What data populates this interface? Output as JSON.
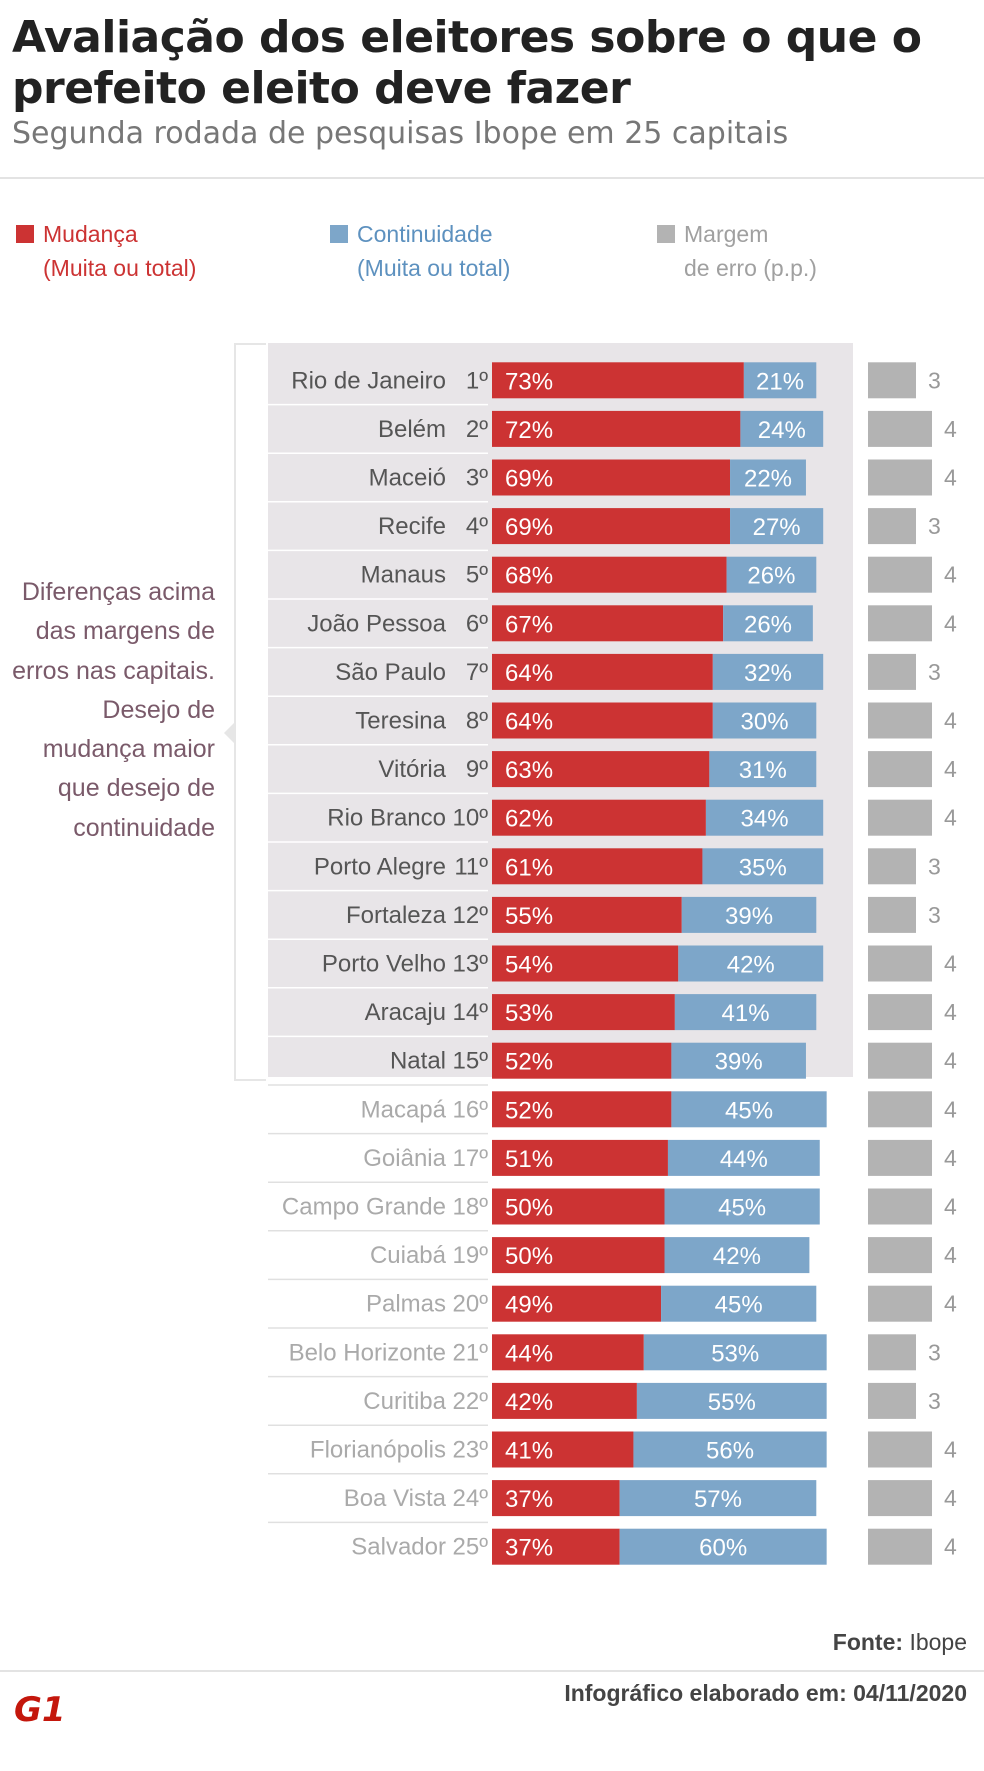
{
  "title": "Avaliação dos eleitores sobre o que o prefeito eleito deve fazer",
  "subtitle": "Segunda rodada de pesquisas Ibope em 25 capitais",
  "legend": {
    "mudanca": "Mudança",
    "mudanca_sub": "(Muita ou total)",
    "continuidade": "Continuidade",
    "continuidade_sub": "(Muita ou total)",
    "margem": "Margem",
    "margem_sub": "de erro (p.p.)"
  },
  "annotation": "Diferenças acima das margens de erros nas capitais. Desejo de mudança maior que desejo de continuidade",
  "colors": {
    "mudanca": "#cc3333",
    "continuidade": "#7da6c9",
    "margem": "#b3b3b3",
    "highlight_bg": "#e8e5e8",
    "label_dark": "#555555",
    "label_light": "#aaaaaa"
  },
  "chart_data": {
    "type": "bar",
    "stacked": true,
    "orientation": "horizontal",
    "highlighted_count": 15,
    "categories": [
      "Rio de Janeiro",
      "Belém",
      "Maceió",
      "Recife",
      "Manaus",
      "João Pessoa",
      "São Paulo",
      "Teresina",
      "Vitória",
      "Rio Branco",
      "Porto Alegre",
      "Fortaleza",
      "Porto Velho",
      "Aracaju",
      "Natal",
      "Macapá",
      "Goiânia",
      "Campo Grande",
      "Cuiabá",
      "Palmas",
      "Belo Horizonte",
      "Curitiba",
      "Florianópolis",
      "Boa Vista",
      "Salvador"
    ],
    "ranks": [
      "1º",
      "2º",
      "3º",
      "4º",
      "5º",
      "6º",
      "7º",
      "8º",
      "9º",
      "10º",
      "11º",
      "12º",
      "13º",
      "14º",
      "15º",
      "16º",
      "17º",
      "18º",
      "19º",
      "20º",
      "21º",
      "22º",
      "23º",
      "24º",
      "25º"
    ],
    "series": [
      {
        "name": "Mudança",
        "values": [
          73,
          72,
          69,
          69,
          68,
          67,
          64,
          64,
          63,
          62,
          61,
          55,
          54,
          53,
          52,
          52,
          51,
          50,
          50,
          49,
          44,
          42,
          41,
          37,
          37
        ]
      },
      {
        "name": "Continuidade",
        "values": [
          21,
          24,
          22,
          27,
          26,
          26,
          32,
          30,
          31,
          34,
          35,
          39,
          42,
          41,
          39,
          45,
          44,
          45,
          42,
          45,
          53,
          55,
          56,
          57,
          60
        ]
      },
      {
        "name": "Margem de erro (p.p.)",
        "values": [
          3,
          4,
          4,
          3,
          4,
          4,
          3,
          4,
          4,
          4,
          3,
          3,
          4,
          4,
          4,
          4,
          4,
          4,
          4,
          4,
          3,
          3,
          4,
          4,
          4
        ]
      }
    ],
    "value_suffix": "%"
  },
  "footer": {
    "fonte_label": "Fonte:",
    "fonte_value": "Ibope",
    "date_text": "Infográfico elaborado em: 04/11/2020",
    "logo": "G1"
  }
}
